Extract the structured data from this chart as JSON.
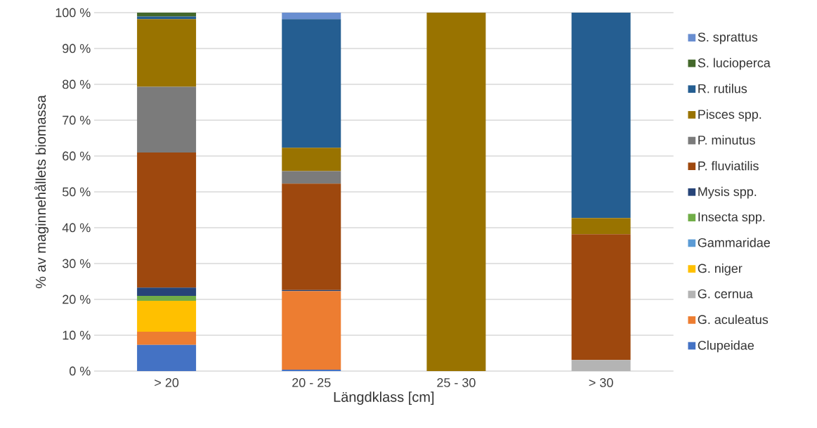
{
  "chart_data": {
    "type": "bar",
    "stacked": true,
    "xlabel": "Längdklass [cm]",
    "ylabel": "% av maginnehållets biomassa",
    "categories": [
      "> 20",
      "20 - 25",
      "25 - 30",
      "> 30"
    ],
    "ylim": [
      0,
      100
    ],
    "yticks": [
      {
        "value": 0,
        "label": "0 %"
      },
      {
        "value": 10,
        "label": "10 %"
      },
      {
        "value": 20,
        "label": "20 %"
      },
      {
        "value": 30,
        "label": "30 %"
      },
      {
        "value": 40,
        "label": "40 %"
      },
      {
        "value": 50,
        "label": "50 %"
      },
      {
        "value": 60,
        "label": "60 %"
      },
      {
        "value": 70,
        "label": "70 %"
      },
      {
        "value": 80,
        "label": "80 %"
      },
      {
        "value": 90,
        "label": "90 %"
      },
      {
        "value": 100,
        "label": "100 %"
      }
    ],
    "grid": "y",
    "legend": "right",
    "series": [
      {
        "name": "Clupeidae",
        "color": "#4472c4",
        "values": [
          7.3,
          0.4,
          0,
          0
        ]
      },
      {
        "name": "G. aculeatus",
        "color": "#ed7d31",
        "values": [
          3.7,
          21.9,
          0,
          0
        ]
      },
      {
        "name": "G. cernua",
        "color": "#b4b4b4",
        "values": [
          0,
          0,
          0,
          3.1
        ]
      },
      {
        "name": "G. niger",
        "color": "#ffc000",
        "values": [
          8.6,
          0,
          0,
          0
        ]
      },
      {
        "name": "Gammaridae",
        "color": "#5b9bd5",
        "values": [
          0,
          0,
          0,
          0
        ]
      },
      {
        "name": "Insecta spp.",
        "color": "#70ad47",
        "values": [
          1.4,
          0,
          0,
          0
        ]
      },
      {
        "name": "Mysis spp.",
        "color": "#264478",
        "values": [
          2.3,
          0.3,
          0,
          0
        ]
      },
      {
        "name": "P. fluviatilis",
        "color": "#9e480e",
        "values": [
          37.7,
          29.7,
          0,
          35.1
        ]
      },
      {
        "name": "P. minutus",
        "color": "#7b7b7b",
        "values": [
          18.3,
          3.5,
          0,
          0
        ]
      },
      {
        "name": "Pisces spp.",
        "color": "#997300",
        "values": [
          18.9,
          6.5,
          100,
          4.5
        ]
      },
      {
        "name": "R. rutilus",
        "color": "#255e91",
        "values": [
          0.7,
          35.9,
          0,
          57.3
        ]
      },
      {
        "name": "S. lucioperca",
        "color": "#43682b",
        "values": [
          1.1,
          0,
          0,
          0
        ]
      },
      {
        "name": "S. sprattus",
        "color": "#698ed0",
        "values": [
          0,
          1.8,
          0,
          0
        ]
      }
    ]
  }
}
